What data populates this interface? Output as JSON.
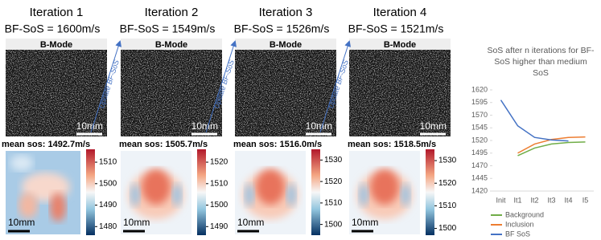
{
  "panels": [
    {
      "title": "Iteration 1",
      "bf_sos": "BF-SoS = 1600m/s",
      "bmode_label": "B-Mode",
      "bmode_scale": "10mm",
      "mean_sos": "mean sos: 1492.7m/s",
      "map_scale": "10mm",
      "colorbar": {
        "ylim": [
          1476,
          1516
        ],
        "yticks": [
          1480,
          1490,
          1500,
          1510
        ]
      }
    },
    {
      "title": "Iteration 2",
      "bf_sos": "BF-SoS = 1549m/s",
      "bmode_label": "B-Mode",
      "bmode_scale": "10mm",
      "mean_sos": "mean sos: 1505.7m/s",
      "map_scale": "10mm",
      "colorbar": {
        "ylim": [
          1486,
          1526
        ],
        "yticks": [
          1490,
          1500,
          1510,
          1520
        ]
      }
    },
    {
      "title": "Iteration 3",
      "bf_sos": "BF-SoS = 1526m/s",
      "bmode_label": "B-Mode",
      "bmode_scale": "10mm",
      "mean_sos": "mean sos: 1516.0m/s",
      "map_scale": "10mm",
      "colorbar": {
        "ylim": [
          1495,
          1535
        ],
        "yticks": [
          1500,
          1510,
          1520,
          1530
        ]
      }
    },
    {
      "title": "Iteration 4",
      "bf_sos": "BF-SoS = 1521m/s",
      "bmode_label": "B-Mode",
      "bmode_scale": "10mm",
      "mean_sos": "mean sos: 1518.5m/s",
      "map_scale": "10mm",
      "colorbar": {
        "ylim": [
          1497,
          1535
        ],
        "yticks": [
          1500,
          1510,
          1520,
          1530
        ]
      }
    }
  ],
  "arrows": [
    "Update BF-SoS",
    "Update BF-SoS",
    "Update BF-SoS"
  ],
  "chart_data": {
    "type": "line",
    "title": "SoS after n iterations for BF-SoS higher than medium SoS",
    "categories": [
      "Init",
      "It1",
      "It2",
      "It3",
      "It4",
      "I5"
    ],
    "series": [
      {
        "name": "Background",
        "color": "#70ad47",
        "values": [
          null,
          1490,
          1505,
          1513,
          1516,
          1517
        ]
      },
      {
        "name": "Inclusion",
        "color": "#ed7d31",
        "values": [
          null,
          1495,
          1513,
          1522,
          1526,
          1527
        ]
      },
      {
        "name": "BF SoS",
        "color": "#4472c4",
        "values": [
          1600,
          1549,
          1526,
          1521,
          1519,
          null
        ]
      }
    ],
    "ylim": [
      1420,
      1620
    ],
    "yticks": [
      1420,
      1445,
      1470,
      1495,
      1520,
      1545,
      1570,
      1595,
      1620
    ],
    "legend": "bottom"
  }
}
